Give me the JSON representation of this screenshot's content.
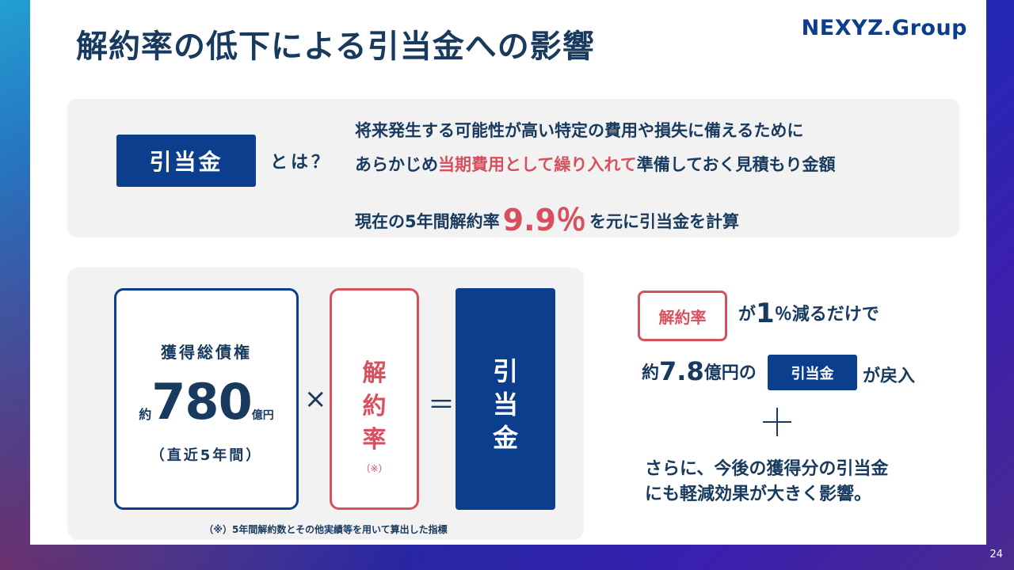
{
  "page": {
    "title": "解約率の低下による引当金への影響",
    "logo": "NEXYZ.Group",
    "page_number": "24"
  },
  "definition": {
    "label": "引当金",
    "question": "とは？",
    "line1": "将来発生する可能性が高い特定の費用や損失に備えるために",
    "line2_pre": "あらかじめ",
    "line2_accent": "当期費用として繰り入れて",
    "line2_post": "準備しておく見積もり金額",
    "line3_pre": "現在の5年間解約率",
    "line3_rate": "9.9％",
    "line3_post": "を元に引当金を計算"
  },
  "formula": {
    "claims_title": "獲得総債権",
    "claims_prefix": "約",
    "claims_value": "780",
    "claims_unit": "億円",
    "claims_period": "（直近5年間）",
    "times": "×",
    "rate_label": "解約率",
    "rate_note": "（※）",
    "equals": "＝",
    "result_label": "引当金",
    "footnote": "（※）5年間解約数とその他実績等を用いて算出した指標"
  },
  "impact": {
    "rate_label": "解約率",
    "line1_pre": "が",
    "line1_num": "1",
    "line1_post": "％減るだけで",
    "line2_pre": "約",
    "line2_amount": "7.8",
    "line2_unit": "億円の",
    "chip_label": "引当金",
    "line2_post": "が戻入",
    "line3": "さらに、今後の獲得分の引当金",
    "line4": "にも軽減効果が大きく影響。"
  },
  "colors": {
    "navy": "#0b3e8c",
    "text": "#183a5e",
    "accent_red": "#d8505e",
    "panel_gray": "#f2f2f2"
  }
}
